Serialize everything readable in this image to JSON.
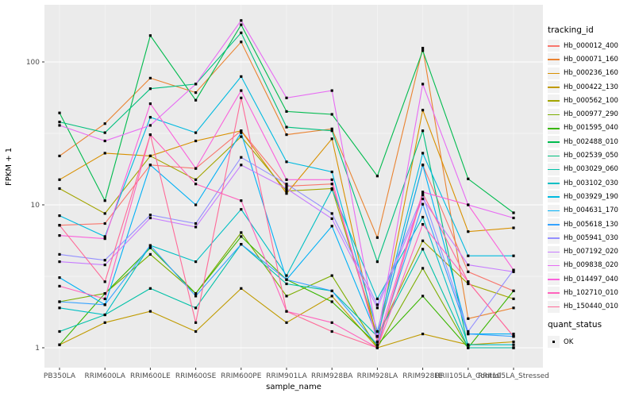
{
  "chart_data": {
    "type": "line",
    "title": "",
    "xlabel": "sample_name",
    "ylabel": "FPKM + 1",
    "y_scale": "log10",
    "y_ticks": [
      1,
      10,
      100
    ],
    "y_tick_labels": [
      "1",
      "10",
      "100"
    ],
    "ylim": [
      0.85,
      280
    ],
    "grid": true,
    "legend_position": "right",
    "legend_title": "tracking_id",
    "quant_title": "quant_status",
    "quant_items": [
      "OK"
    ],
    "point_shape": "square",
    "point_color": "#000000",
    "categories": [
      "PB350LA",
      "RRIM600LA",
      "RRIM600LE",
      "RRIM600SE",
      "RRIM600PE",
      "RRIM901LA",
      "RRIM928BA",
      "RRIM928LA",
      "RRIM928LE",
      "RRII105LA_Control",
      "RRII105LA_Stressed"
    ],
    "series": [
      {
        "name": "Hb_000012_400",
        "color": "#F8766D",
        "values": [
          7.2,
          7.4,
          19,
          18,
          33,
          13.5,
          14,
          1.2,
          19,
          3.4,
          2.5
        ]
      },
      {
        "name": "Hb_000071_160",
        "color": "#EA8331",
        "values": [
          22,
          37,
          77,
          61,
          138,
          31,
          34,
          5.9,
          125,
          1.6,
          1.9
        ]
      },
      {
        "name": "Hb_000236_160",
        "color": "#D89000",
        "values": [
          15,
          23,
          22,
          28,
          33,
          12,
          29,
          1.1,
          46,
          6.5,
          6.9
        ]
      },
      {
        "name": "Hb_000422_130",
        "color": "#C09B00",
        "values": [
          1.05,
          1.5,
          1.8,
          1.3,
          2.6,
          1.5,
          2.3,
          1.0,
          1.25,
          1.05,
          1.1
        ]
      },
      {
        "name": "Hb_000562_100",
        "color": "#A3A500",
        "values": [
          13,
          8.7,
          22,
          15,
          30,
          12.5,
          13,
          1.2,
          5.6,
          2.8,
          2.2
        ]
      },
      {
        "name": "Hb_000977_290",
        "color": "#7CAE00",
        "values": [
          2.1,
          2.4,
          4.5,
          2.4,
          6.4,
          2.3,
          3.2,
          1.0,
          3.6,
          1.0,
          1.0
        ]
      },
      {
        "name": "Hb_001595_040",
        "color": "#39B600",
        "values": [
          1.05,
          2.4,
          5.0,
          2.4,
          6.0,
          3.0,
          2.1,
          1.05,
          2.3,
          1.0,
          2.5
        ]
      },
      {
        "name": "Hb_002488_010",
        "color": "#00BB4E",
        "values": [
          44,
          10.7,
          153,
          54,
          182,
          45,
          43,
          15.9,
          120,
          15.2,
          8.8
        ]
      },
      {
        "name": "Hb_002539_050",
        "color": "#00BF7D",
        "values": [
          38,
          32,
          65,
          70,
          160,
          35,
          33,
          4.0,
          33,
          1.0,
          1.0
        ]
      },
      {
        "name": "Hb_003029_060",
        "color": "#00C1A7",
        "values": [
          1.3,
          1.7,
          2.6,
          1.9,
          5.3,
          2.8,
          2.5,
          1.2,
          4.9,
          1.0,
          1.0
        ]
      },
      {
        "name": "Hb_003102_030",
        "color": "#00BFC4",
        "values": [
          1.9,
          1.7,
          5.2,
          4.0,
          9.3,
          3.2,
          12.8,
          2.2,
          8.2,
          1.05,
          1.05
        ]
      },
      {
        "name": "Hb_003929_190",
        "color": "#00BAE0",
        "values": [
          8.4,
          6.0,
          41,
          32,
          79,
          20,
          17,
          1.3,
          23,
          4.4,
          4.4
        ]
      },
      {
        "name": "Hb_004631_170",
        "color": "#00B0F6",
        "values": [
          3.1,
          2.0,
          19,
          10,
          32,
          3.0,
          7.1,
          1.2,
          19,
          1.25,
          1.25
        ]
      },
      {
        "name": "Hb_005618_130",
        "color": "#35A2FF",
        "values": [
          2.1,
          2.0,
          5.2,
          2.3,
          5.3,
          3.0,
          2.5,
          1.05,
          10.1,
          1.25,
          1.2
        ]
      },
      {
        "name": "Hb_005941_030",
        "color": "#9590FF",
        "values": [
          4.5,
          4.1,
          8.5,
          7.4,
          21.5,
          14,
          8.7,
          2.0,
          11.7,
          1.3,
          3.5
        ]
      },
      {
        "name": "Hb_007192_020",
        "color": "#C77CFF",
        "values": [
          4.0,
          3.8,
          8.1,
          7.0,
          19,
          13,
          8.0,
          1.9,
          11,
          3.8,
          3.4
        ]
      },
      {
        "name": "Hb_009838_020",
        "color": "#E76BF3",
        "values": [
          36,
          28,
          36,
          70,
          195,
          56,
          63,
          1.2,
          70,
          10,
          8.1
        ]
      },
      {
        "name": "Hb_014497_040",
        "color": "#FA62DB",
        "values": [
          6.1,
          5.8,
          51,
          18,
          63,
          15,
          15,
          1.1,
          12.3,
          10,
          3.5
        ]
      },
      {
        "name": "Hb_102710_010",
        "color": "#FF62BC",
        "values": [
          2.7,
          2.2,
          31,
          14,
          10.7,
          1.8,
          1.5,
          1.0,
          7.3,
          2.9,
          1.2
        ]
      },
      {
        "name": "Hb_150440_010",
        "color": "#FF6A98",
        "values": [
          7.2,
          2.9,
          31,
          1.5,
          56,
          1.8,
          1.3,
          1.0,
          12,
          2.9,
          1.2
        ]
      }
    ]
  },
  "colors": {
    "panel_bg": "#EBEBEB",
    "grid_major": "#FFFFFF",
    "grid_minor": "#F7F7F7",
    "key_bg": "#F2F2F2",
    "tick_label": "#4D4D4D",
    "tick_mark": "#333333",
    "axis_title": "#000000"
  }
}
